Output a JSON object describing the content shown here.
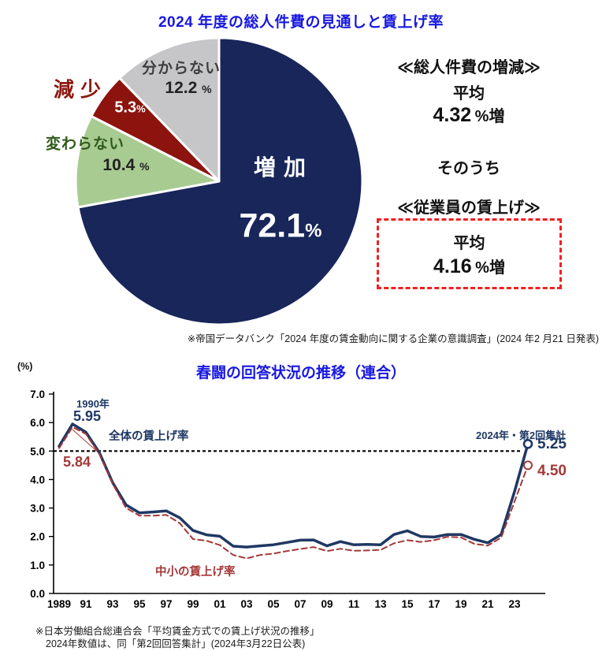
{
  "page": {
    "title": "2024 年度の総人件費の見通しと賃上げ率"
  },
  "pie_section": {
    "source_note": "※帝国データバンク「2024 年度の賃金動向に関する企業の意識調査」(2024 年2 月21 日発表)",
    "summary": {
      "heading_total": "≪総人件費の増減≫",
      "avg_label": "平均",
      "total_value": "4.32",
      "total_suffix": "%増",
      "connector": "そのうち",
      "heading_wage": "≪従業員の賃上げ≫",
      "wage_avg_label": "平均",
      "wage_value": "4.16",
      "wage_suffix": "%増"
    }
  },
  "line_section": {
    "title": "春闘の回答状況の推移（連合）",
    "unit_label": "(%)",
    "source_note_line1": "※日本労働組合総連合会「平均賃金方式での賃上げ状況の推移」",
    "source_note_line2": "2024年数値は、同「第2回回答集計」(2024年3月22日公表)"
  },
  "chart_data": [
    {
      "type": "pie",
      "title": "2024年度の総人件費の見通し",
      "start_angle_deg": 0,
      "direction": "clockwise",
      "slices": [
        {
          "label": "増加",
          "value": 72.1,
          "value_text": "72.1",
          "pct_sign": "%",
          "color": "#18265a"
        },
        {
          "label": "変わらない",
          "value": 10.4,
          "value_text": "10.4",
          "pct_sign": "%",
          "color": "#a8cb92"
        },
        {
          "label": "減少",
          "value": 5.3,
          "value_text": "5.3",
          "pct_sign": "%",
          "color": "#8c130e"
        },
        {
          "label": "分からない",
          "value": 12.2,
          "value_text": "12.2",
          "pct_sign": "%",
          "color": "#c6c6c8"
        }
      ]
    },
    {
      "type": "line",
      "title": "春闘の回答状況の推移（連合）",
      "ylabel": "(%)",
      "ylim": [
        0.0,
        7.0
      ],
      "ytick_labels": [
        "0.0",
        "1.0",
        "2.0",
        "3.0",
        "4.0",
        "5.0",
        "6.0",
        "7.0"
      ],
      "xtick_labels": [
        "1989",
        "91",
        "93",
        "95",
        "97",
        "99",
        "01",
        "03",
        "05",
        "07",
        "09",
        "11",
        "13",
        "15",
        "17",
        "19",
        "21",
        "23"
      ],
      "reference_line_y": 5.0,
      "x": [
        1989,
        1990,
        1991,
        1992,
        1993,
        1994,
        1995,
        1996,
        1997,
        1998,
        1999,
        2000,
        2001,
        2002,
        2003,
        2004,
        2005,
        2006,
        2007,
        2008,
        2009,
        2010,
        2011,
        2012,
        2013,
        2014,
        2015,
        2016,
        2017,
        2018,
        2019,
        2020,
        2021,
        2022,
        2023,
        2024
      ],
      "series": [
        {
          "name": "全体の賃上げ率",
          "style": "solid",
          "color": "#1f3864",
          "values": [
            5.17,
            5.95,
            5.66,
            4.95,
            3.89,
            3.11,
            2.83,
            2.86,
            2.9,
            2.66,
            2.21,
            2.06,
            2.01,
            1.66,
            1.63,
            1.67,
            1.71,
            1.79,
            1.87,
            1.88,
            1.67,
            1.82,
            1.71,
            1.72,
            1.71,
            2.07,
            2.2,
            2.0,
            1.98,
            2.07,
            2.07,
            1.9,
            1.78,
            2.07,
            3.58,
            5.25
          ]
        },
        {
          "name": "中小の賃上げ率",
          "style": "dashed",
          "color": "#a33838",
          "values": [
            5.1,
            5.84,
            5.6,
            4.9,
            3.85,
            3.0,
            2.73,
            2.73,
            2.76,
            2.47,
            1.91,
            1.85,
            1.7,
            1.35,
            1.23,
            1.35,
            1.4,
            1.49,
            1.56,
            1.63,
            1.49,
            1.57,
            1.5,
            1.51,
            1.53,
            1.76,
            1.87,
            1.81,
            1.87,
            1.99,
            1.97,
            1.74,
            1.68,
            1.96,
            3.23,
            4.5
          ]
        }
      ],
      "annotations": {
        "peak_year": "1990年",
        "peak_overall": "5.95",
        "peak_sme": "5.84",
        "series_overall_label": "全体の賃上げ率",
        "series_sme_label": "中小の賃上げ率",
        "latest_label": "2024年・第2回集計",
        "latest_overall": "5.25",
        "latest_sme": "4.50"
      }
    }
  ]
}
